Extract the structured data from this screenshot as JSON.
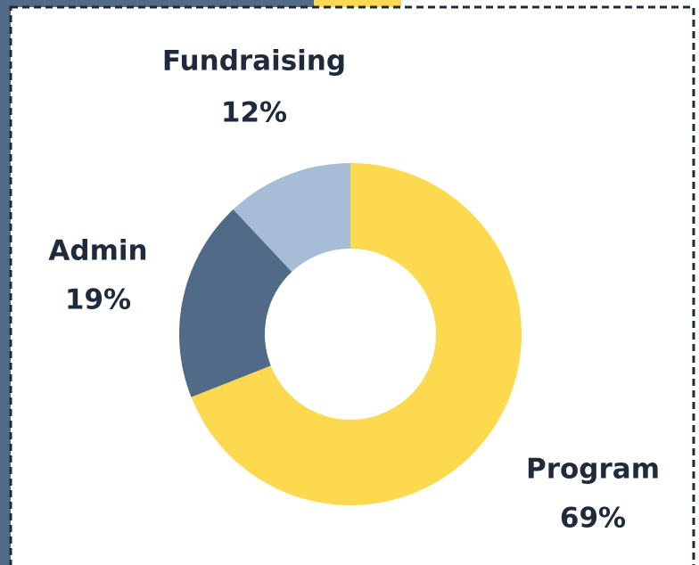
{
  "chart_data": {
    "type": "donut",
    "categories": [
      "Program",
      "Admin",
      "Fundraising"
    ],
    "values": [
      69,
      19,
      12
    ],
    "value_labels": [
      "69%",
      "19%",
      "12%"
    ],
    "colors": [
      "#fdd94f",
      "#506a88",
      "#a7bcd6"
    ]
  }
}
